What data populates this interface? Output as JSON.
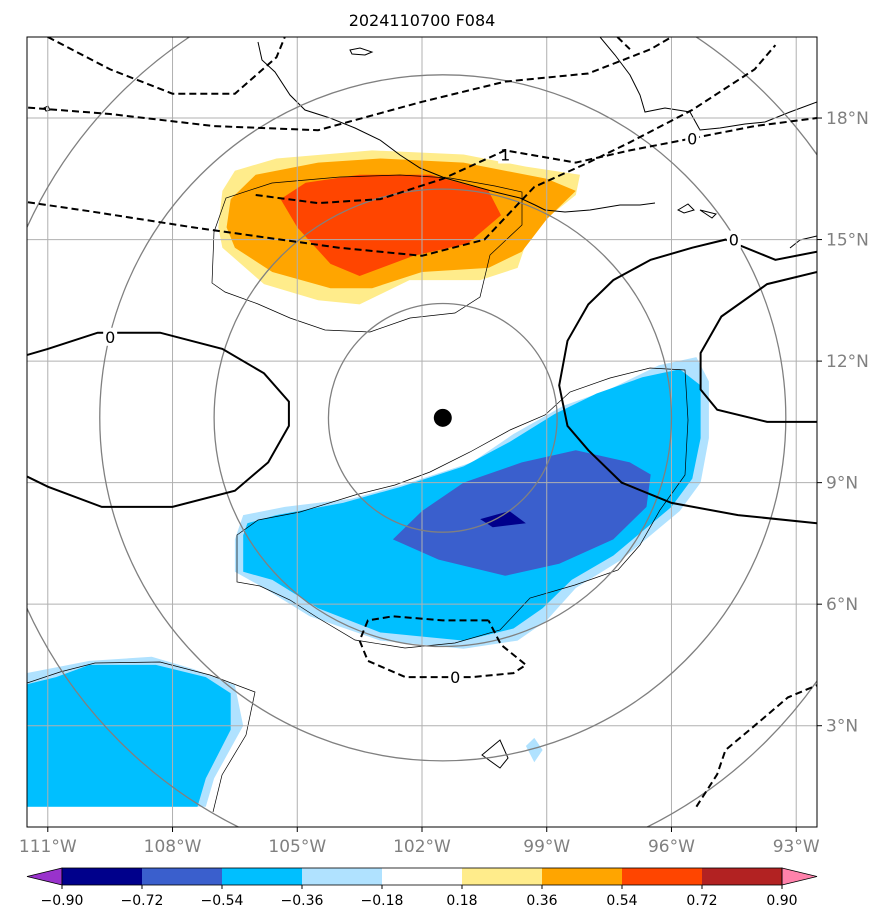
{
  "chart_data": {
    "type": "heatmap",
    "title": "2024110700 F084",
    "xlabel": "",
    "ylabel": "",
    "xlim": [
      -111.5,
      -92.5
    ],
    "ylim": [
      0.5,
      20
    ],
    "x_ticks": [
      -111,
      -108,
      -105,
      -102,
      -99,
      -96,
      -93
    ],
    "x_tick_labels": [
      "111°W",
      "108°W",
      "105°W",
      "102°W",
      "99°W",
      "96°W",
      "93°W"
    ],
    "y_ticks": [
      3,
      6,
      9,
      12,
      15,
      18
    ],
    "y_tick_labels": [
      "3°N",
      "6°N",
      "9°N",
      "12°N",
      "15°N",
      "18°N"
    ],
    "grid": true,
    "center_marker": {
      "lon": -101.5,
      "lat": 10.6
    },
    "range_rings_deg": [
      2.75,
      5.5,
      8.25,
      11
    ],
    "colorbar": {
      "boundaries": [
        -0.9,
        -0.72,
        -0.54,
        -0.36,
        -0.18,
        0.18,
        0.36,
        0.54,
        0.72,
        0.9
      ],
      "tick_labels": [
        "−0.90",
        "−0.72",
        "−0.54",
        "−0.36",
        "−0.18",
        "0.18",
        "0.36",
        "0.54",
        "0.72",
        "0.90"
      ],
      "colors": [
        "#9932cc",
        "#00008b",
        "#3a5fcd",
        "#00bfff",
        "#b0e2ff",
        "#ffffff",
        "#ffec8b",
        "#ffa500",
        "#ff4500",
        "#b22222",
        "#ff82ab"
      ],
      "extend": "both"
    },
    "filled_regions": [
      {
        "level": [
          0.18,
          0.36
        ],
        "color": "#ffec8b",
        "points": [
          [
            -106.9,
            15.3
          ],
          [
            -106.8,
            16.2
          ],
          [
            -106.5,
            16.7
          ],
          [
            -105.5,
            17.0
          ],
          [
            -103.2,
            17.2
          ],
          [
            -101.0,
            17.1
          ],
          [
            -99.5,
            16.8
          ],
          [
            -98.2,
            16.6
          ],
          [
            -98.3,
            16.1
          ],
          [
            -99.4,
            15.2
          ],
          [
            -99.7,
            14.3
          ],
          [
            -100.6,
            14.0
          ],
          [
            -102.3,
            14.0
          ],
          [
            -103.5,
            13.4
          ],
          [
            -104.5,
            13.5
          ],
          [
            -105.8,
            13.9
          ],
          [
            -106.8,
            14.8
          ]
        ]
      },
      {
        "level": [
          0.36,
          0.54
        ],
        "color": "#ffa500",
        "points": [
          [
            -106.7,
            15.3
          ],
          [
            -106.6,
            16.0
          ],
          [
            -106.0,
            16.6
          ],
          [
            -104.5,
            16.9
          ],
          [
            -103.0,
            17.0
          ],
          [
            -101.0,
            16.9
          ],
          [
            -99.0,
            16.5
          ],
          [
            -98.3,
            16.2
          ],
          [
            -99.0,
            15.5
          ],
          [
            -99.6,
            14.7
          ],
          [
            -100.4,
            14.3
          ],
          [
            -102.0,
            14.2
          ],
          [
            -103.2,
            13.8
          ],
          [
            -104.2,
            13.8
          ],
          [
            -105.6,
            14.2
          ],
          [
            -106.5,
            14.8
          ]
        ]
      },
      {
        "level": [
          0.54,
          0.72
        ],
        "color": "#ff4500",
        "points": [
          [
            -105.4,
            16.0
          ],
          [
            -104.8,
            16.4
          ],
          [
            -103.5,
            16.6
          ],
          [
            -101.8,
            16.6
          ],
          [
            -100.4,
            16.2
          ],
          [
            -100.1,
            15.6
          ],
          [
            -100.9,
            14.9
          ],
          [
            -102.2,
            14.6
          ],
          [
            -103.5,
            14.1
          ],
          [
            -104.2,
            14.4
          ],
          [
            -105.0,
            15.3
          ]
        ]
      },
      {
        "level": [
          -0.36,
          -0.18
        ],
        "color": "#b0e2ff",
        "points": [
          [
            -106.5,
            7.6
          ],
          [
            -106.5,
            6.8
          ],
          [
            -105.8,
            6.4
          ],
          [
            -104.7,
            5.7
          ],
          [
            -103.0,
            5.1
          ],
          [
            -101.0,
            4.9
          ],
          [
            -99.7,
            5.1
          ],
          [
            -99.0,
            5.6
          ],
          [
            -98.3,
            6.4
          ],
          [
            -97.2,
            7.1
          ],
          [
            -96.5,
            7.7
          ],
          [
            -95.8,
            8.3
          ],
          [
            -95.3,
            9.0
          ],
          [
            -95.1,
            10.1
          ],
          [
            -95.1,
            11.5
          ],
          [
            -95.4,
            12.1
          ],
          [
            -96.3,
            11.9
          ],
          [
            -97.5,
            11.3
          ],
          [
            -98.6,
            10.9
          ],
          [
            -99.8,
            10.2
          ],
          [
            -100.8,
            9.5
          ],
          [
            -102.3,
            9.0
          ],
          [
            -103.7,
            8.6
          ],
          [
            -105.3,
            8.4
          ],
          [
            -106.3,
            8.2
          ]
        ]
      },
      {
        "level": [
          -0.54,
          -0.36
        ],
        "color": "#00bfff",
        "points": [
          [
            -106.3,
            7.7
          ],
          [
            -106.3,
            6.8
          ],
          [
            -105.6,
            6.6
          ],
          [
            -104.5,
            5.9
          ],
          [
            -103.0,
            5.3
          ],
          [
            -101.0,
            5.1
          ],
          [
            -99.8,
            5.4
          ],
          [
            -99.1,
            5.9
          ],
          [
            -98.4,
            6.6
          ],
          [
            -97.4,
            7.2
          ],
          [
            -96.7,
            7.8
          ],
          [
            -96.0,
            8.4
          ],
          [
            -95.5,
            9.1
          ],
          [
            -95.3,
            10.1
          ],
          [
            -95.3,
            11.4
          ],
          [
            -95.8,
            11.8
          ],
          [
            -96.7,
            11.6
          ],
          [
            -97.8,
            11.2
          ],
          [
            -98.8,
            10.7
          ],
          [
            -99.9,
            10.0
          ],
          [
            -101.0,
            9.4
          ],
          [
            -102.5,
            8.9
          ],
          [
            -103.9,
            8.5
          ],
          [
            -105.5,
            8.2
          ],
          [
            -106.2,
            8.0
          ]
        ]
      },
      {
        "level": [
          -0.72,
          -0.54
        ],
        "color": "#3a5fcd",
        "points": [
          [
            -102.7,
            7.6
          ],
          [
            -101.6,
            7.1
          ],
          [
            -100.0,
            6.7
          ],
          [
            -98.7,
            7.0
          ],
          [
            -97.4,
            7.6
          ],
          [
            -96.6,
            8.4
          ],
          [
            -96.5,
            9.2
          ],
          [
            -97.0,
            9.5
          ],
          [
            -98.3,
            9.8
          ],
          [
            -99.6,
            9.5
          ],
          [
            -101.0,
            9.0
          ],
          [
            -102.0,
            8.3
          ]
        ]
      },
      {
        "level": [
          -0.9,
          -0.72
        ],
        "color": "#00008b",
        "points": [
          [
            -100.6,
            8.1
          ],
          [
            -99.9,
            8.3
          ],
          [
            -99.5,
            8.0
          ],
          [
            -100.3,
            7.9
          ]
        ]
      },
      {
        "level": [
          -0.36,
          -0.18
        ],
        "color": "#b0e2ff",
        "points": [
          [
            -112,
            1.0
          ],
          [
            -112,
            4.2
          ],
          [
            -111.0,
            4.4
          ],
          [
            -110.0,
            4.6
          ],
          [
            -108.5,
            4.7
          ],
          [
            -107.5,
            4.4
          ],
          [
            -106.5,
            4.0
          ],
          [
            -106.3,
            3.0
          ],
          [
            -107.0,
            1.7
          ],
          [
            -107.2,
            1.0
          ]
        ]
      },
      {
        "level": [
          -0.54,
          -0.36
        ],
        "color": "#00bfff",
        "points": [
          [
            -112,
            1.0
          ],
          [
            -112,
            3.9
          ],
          [
            -110.8,
            4.2
          ],
          [
            -110.0,
            4.5
          ],
          [
            -108.4,
            4.5
          ],
          [
            -107.2,
            4.2
          ],
          [
            -106.6,
            3.8
          ],
          [
            -106.6,
            2.9
          ],
          [
            -107.2,
            1.7
          ],
          [
            -107.4,
            1.0
          ]
        ]
      },
      {
        "level": [
          -0.36,
          -0.18
        ],
        "color": "#b0e2ff",
        "points": [
          [
            -99.5,
            2.5
          ],
          [
            -99.3,
            2.1
          ],
          [
            -99.1,
            2.4
          ],
          [
            -99.3,
            2.7
          ]
        ]
      }
    ],
    "contours": [
      {
        "label": "0",
        "style": "solid",
        "label_at": [
          -109.5,
          12.6
        ],
        "points": [
          [
            -112,
            12.0
          ],
          [
            -111.0,
            12.3
          ],
          [
            -109.8,
            12.7
          ],
          [
            -108.3,
            12.7
          ],
          [
            -106.8,
            12.3
          ],
          [
            -105.8,
            11.7
          ],
          [
            -105.2,
            11.0
          ],
          [
            -105.2,
            10.4
          ],
          [
            -105.7,
            9.5
          ],
          [
            -106.5,
            8.8
          ],
          [
            -108.0,
            8.4
          ],
          [
            -109.7,
            8.4
          ],
          [
            -111.0,
            8.9
          ],
          [
            -112,
            9.4
          ]
        ]
      },
      {
        "label": "0",
        "style": "solid",
        "label_at": [
          -94.5,
          15.0
        ],
        "points": [
          [
            -92.5,
            14.7
          ],
          [
            -93.5,
            14.5
          ],
          [
            -94.7,
            15.0
          ],
          [
            -95.5,
            14.8
          ],
          [
            -96.5,
            14.5
          ],
          [
            -97.4,
            14.0
          ],
          [
            -98.0,
            13.4
          ],
          [
            -98.5,
            12.5
          ],
          [
            -98.7,
            11.4
          ],
          [
            -98.5,
            10.4
          ],
          [
            -98.0,
            9.8
          ],
          [
            -97.2,
            9.0
          ],
          [
            -96.0,
            8.5
          ],
          [
            -94.4,
            8.2
          ],
          [
            -92.5,
            8.0
          ]
        ]
      },
      {
        "label": "0",
        "style": "solid",
        "points": [
          [
            -92.5,
            14.2
          ],
          [
            -93.7,
            13.9
          ],
          [
            -94.8,
            13.1
          ],
          [
            -95.3,
            12.2
          ],
          [
            -95.3,
            11.3
          ],
          [
            -94.9,
            10.8
          ],
          [
            -93.7,
            10.5
          ],
          [
            -92.5,
            10.5
          ]
        ]
      },
      {
        "label": "0",
        "style": "dashed",
        "label_at": [
          -101.2,
          4.2
        ],
        "points": [
          [
            -100.4,
            5.6
          ],
          [
            -101.5,
            5.6
          ],
          [
            -102.7,
            5.7
          ],
          [
            -103.3,
            5.6
          ],
          [
            -103.5,
            5.1
          ],
          [
            -103.3,
            4.6
          ],
          [
            -102.4,
            4.2
          ],
          [
            -100.8,
            4.2
          ],
          [
            -99.8,
            4.3
          ],
          [
            -99.5,
            4.5
          ],
          [
            -100.1,
            5.0
          ],
          [
            -100.4,
            5.6
          ]
        ]
      },
      {
        "label": "1",
        "style": "dashed",
        "label_at": [
          -100.0,
          17.1
        ],
        "points": [
          [
            -112,
            16.0
          ],
          [
            -110.0,
            15.7
          ],
          [
            -107.5,
            15.3
          ],
          [
            -104.0,
            14.8
          ],
          [
            -102.0,
            14.6
          ],
          [
            -100.5,
            15.0
          ],
          [
            -99.3,
            16.3
          ],
          [
            -98.0,
            16.9
          ],
          [
            -97.0,
            17.4
          ],
          [
            -95.5,
            18.2
          ],
          [
            -94.0,
            19.2
          ],
          [
            -93.5,
            19.8
          ]
        ]
      },
      {
        "label": "0",
        "style": "dashed",
        "label_at": [
          -95.5,
          17.5
        ],
        "points": [
          [
            -106.0,
            16.1
          ],
          [
            -104.5,
            15.9
          ],
          [
            -103.0,
            16.0
          ],
          [
            -101.5,
            16.5
          ],
          [
            -100.0,
            17.2
          ],
          [
            -98.3,
            16.9
          ],
          [
            -97.0,
            17.2
          ],
          [
            -95.5,
            17.5
          ],
          [
            -94.0,
            17.8
          ],
          [
            -92.5,
            18.0
          ]
        ]
      },
      {
        "label": "0",
        "style": "dashed",
        "points": [
          [
            -112,
            18.3
          ],
          [
            -109.5,
            18.1
          ],
          [
            -107.0,
            17.8
          ],
          [
            -104.5,
            17.7
          ],
          [
            -102.0,
            18.4
          ],
          [
            -100.0,
            18.9
          ],
          [
            -98.0,
            19.1
          ],
          [
            -96.5,
            19.7
          ],
          [
            -96.0,
            20.0
          ]
        ]
      },
      {
        "label": "0",
        "style": "dashed",
        "points": [
          [
            -111.0,
            20.0
          ],
          [
            -109.5,
            19.2
          ],
          [
            -108.0,
            18.6
          ],
          [
            -106.5,
            18.6
          ],
          [
            -105.5,
            19.5
          ],
          [
            -105.3,
            20.0
          ]
        ]
      },
      {
        "label": "0",
        "style": "dashed",
        "points": [
          [
            -97.3,
            20.0
          ],
          [
            -97.0,
            19.7
          ]
        ]
      },
      {
        "label": "0",
        "style": "dashed",
        "points": [
          [
            -95.4,
            1.0
          ],
          [
            -94.9,
            1.8
          ],
          [
            -94.7,
            2.4
          ],
          [
            -94.0,
            3.0
          ],
          [
            -93.2,
            3.7
          ],
          [
            -92.5,
            4.0
          ]
        ]
      }
    ]
  }
}
